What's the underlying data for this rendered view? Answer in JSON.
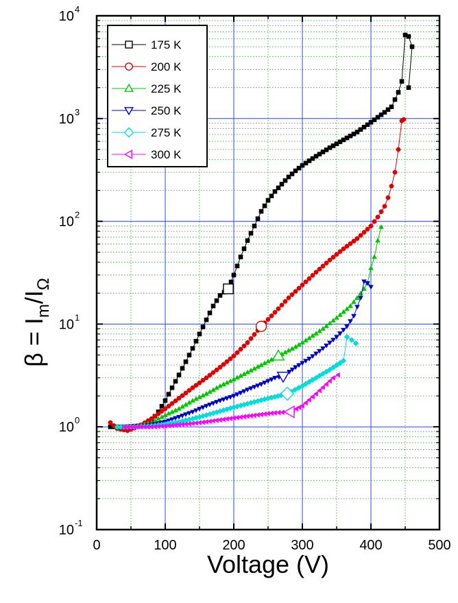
{
  "chart_data": {
    "type": "scatter",
    "xlabel": "Voltage (V)",
    "ylabel": {
      "base": "β = I",
      "sub1": "m",
      "mid": "/I",
      "sub2": "Ω"
    },
    "xlim": [
      0,
      500
    ],
    "ylim_log10": [
      -1,
      4
    ],
    "xscale": "linear",
    "yscale": "log",
    "grid": true,
    "legend_position": "top-left",
    "x_ticks": [
      0,
      100,
      200,
      300,
      400,
      500
    ],
    "x_tick_labels": [
      "0",
      "100",
      "200",
      "300",
      "400",
      "500"
    ],
    "y_ticks_exp": [
      -1,
      0,
      1,
      2,
      3,
      4
    ],
    "y_tick_labels": [
      {
        "base": "10",
        "exp": "-1"
      },
      {
        "base": "10",
        "exp": "0"
      },
      {
        "base": "10",
        "exp": "1"
      },
      {
        "base": "10",
        "exp": "2"
      },
      {
        "base": "10",
        "exp": "3"
      },
      {
        "base": "10",
        "exp": "4"
      }
    ],
    "series": [
      {
        "name": "175 K",
        "color": "#000000",
        "marker": "square",
        "highlight_x": 192,
        "points": [
          [
            20,
            1.0
          ],
          [
            40,
            1.0
          ],
          [
            60,
            1.02
          ],
          [
            70,
            1.05
          ],
          [
            80,
            1.15
          ],
          [
            90,
            1.4
          ],
          [
            100,
            1.8
          ],
          [
            110,
            2.4
          ],
          [
            120,
            3.2
          ],
          [
            130,
            4.3
          ],
          [
            140,
            5.8
          ],
          [
            150,
            8.0
          ],
          [
            160,
            11
          ],
          [
            170,
            15
          ],
          [
            180,
            19
          ],
          [
            192,
            22
          ],
          [
            200,
            30
          ],
          [
            210,
            45
          ],
          [
            220,
            65
          ],
          [
            230,
            90
          ],
          [
            240,
            125
          ],
          [
            250,
            160
          ],
          [
            260,
            195
          ],
          [
            270,
            230
          ],
          [
            280,
            270
          ],
          [
            290,
            310
          ],
          [
            300,
            350
          ],
          [
            320,
            430
          ],
          [
            340,
            520
          ],
          [
            360,
            620
          ],
          [
            380,
            740
          ],
          [
            400,
            920
          ],
          [
            420,
            1150
          ],
          [
            430,
            1300
          ],
          [
            440,
            1800
          ],
          [
            445,
            2300
          ],
          [
            450,
            6500
          ],
          [
            455,
            6300
          ],
          [
            460,
            5000
          ],
          [
            455,
            2000
          ]
        ]
      },
      {
        "name": "200 K",
        "color": "#e00000",
        "marker": "circle",
        "highlight_x": 240,
        "points": [
          [
            20,
            1.1
          ],
          [
            30,
            0.96
          ],
          [
            45,
            0.92
          ],
          [
            60,
            1.0
          ],
          [
            80,
            1.2
          ],
          [
            100,
            1.5
          ],
          [
            120,
            1.9
          ],
          [
            140,
            2.4
          ],
          [
            160,
            3.0
          ],
          [
            180,
            3.8
          ],
          [
            200,
            4.9
          ],
          [
            220,
            6.6
          ],
          [
            240,
            9.5
          ],
          [
            260,
            13
          ],
          [
            280,
            18
          ],
          [
            300,
            24
          ],
          [
            320,
            32
          ],
          [
            340,
            42
          ],
          [
            360,
            54
          ],
          [
            380,
            68
          ],
          [
            400,
            90
          ],
          [
            410,
            110
          ],
          [
            420,
            140
          ],
          [
            425,
            170
          ],
          [
            430,
            220
          ],
          [
            435,
            300
          ],
          [
            440,
            500
          ],
          [
            445,
            950
          ],
          [
            448,
            980
          ]
        ]
      },
      {
        "name": "225 K",
        "color": "#00c800",
        "marker": "triangle-up",
        "highlight_x": 265,
        "points": [
          [
            30,
            1.0
          ],
          [
            60,
            1.02
          ],
          [
            80,
            1.1
          ],
          [
            100,
            1.3
          ],
          [
            120,
            1.5
          ],
          [
            140,
            1.8
          ],
          [
            160,
            2.1
          ],
          [
            180,
            2.5
          ],
          [
            200,
            2.9
          ],
          [
            220,
            3.4
          ],
          [
            240,
            4.0
          ],
          [
            265,
            4.9
          ],
          [
            290,
            6.0
          ],
          [
            310,
            7.3
          ],
          [
            330,
            9.0
          ],
          [
            350,
            11.5
          ],
          [
            370,
            15
          ],
          [
            380,
            18
          ],
          [
            390,
            22
          ],
          [
            395,
            25
          ],
          [
            400,
            35
          ],
          [
            405,
            45
          ],
          [
            410,
            65
          ],
          [
            415,
            88
          ]
        ]
      },
      {
        "name": "250 K",
        "color": "#0000cc",
        "marker": "triangle-down",
        "highlight_x": 272,
        "points": [
          [
            30,
            1.0
          ],
          [
            60,
            1.0
          ],
          [
            80,
            1.05
          ],
          [
            100,
            1.12
          ],
          [
            120,
            1.25
          ],
          [
            140,
            1.4
          ],
          [
            160,
            1.6
          ],
          [
            180,
            1.8
          ],
          [
            200,
            2.0
          ],
          [
            220,
            2.3
          ],
          [
            240,
            2.6
          ],
          [
            260,
            3.0
          ],
          [
            272,
            3.1
          ],
          [
            290,
            3.8
          ],
          [
            310,
            4.6
          ],
          [
            330,
            5.8
          ],
          [
            350,
            7.5
          ],
          [
            365,
            9.5
          ],
          [
            375,
            12
          ],
          [
            385,
            18
          ],
          [
            390,
            26
          ],
          [
            395,
            25
          ],
          [
            400,
            23
          ]
        ]
      },
      {
        "name": "275 K",
        "color": "#00dddd",
        "marker": "diamond",
        "highlight_x": 278,
        "points": [
          [
            30,
            1.0
          ],
          [
            60,
            1.0
          ],
          [
            80,
            1.02
          ],
          [
            100,
            1.06
          ],
          [
            120,
            1.12
          ],
          [
            140,
            1.2
          ],
          [
            160,
            1.3
          ],
          [
            180,
            1.42
          ],
          [
            200,
            1.55
          ],
          [
            220,
            1.68
          ],
          [
            240,
            1.82
          ],
          [
            260,
            1.96
          ],
          [
            278,
            2.1
          ],
          [
            300,
            2.5
          ],
          [
            320,
            3.0
          ],
          [
            340,
            3.6
          ],
          [
            360,
            4.4
          ],
          [
            365,
            7.5
          ],
          [
            372,
            7.0
          ],
          [
            378,
            6.5
          ]
        ]
      },
      {
        "name": "300 K",
        "color": "#ff00ff",
        "marker": "triangle-left",
        "highlight_x": 282,
        "points": [
          [
            40,
            1.0
          ],
          [
            60,
            1.0
          ],
          [
            80,
            1.0
          ],
          [
            100,
            1.02
          ],
          [
            120,
            1.05
          ],
          [
            140,
            1.08
          ],
          [
            160,
            1.12
          ],
          [
            180,
            1.17
          ],
          [
            200,
            1.22
          ],
          [
            220,
            1.27
          ],
          [
            240,
            1.32
          ],
          [
            260,
            1.37
          ],
          [
            282,
            1.4
          ],
          [
            300,
            1.6
          ],
          [
            320,
            2.1
          ],
          [
            335,
            2.6
          ],
          [
            345,
            3.0
          ],
          [
            352,
            3.2
          ]
        ]
      }
    ]
  }
}
